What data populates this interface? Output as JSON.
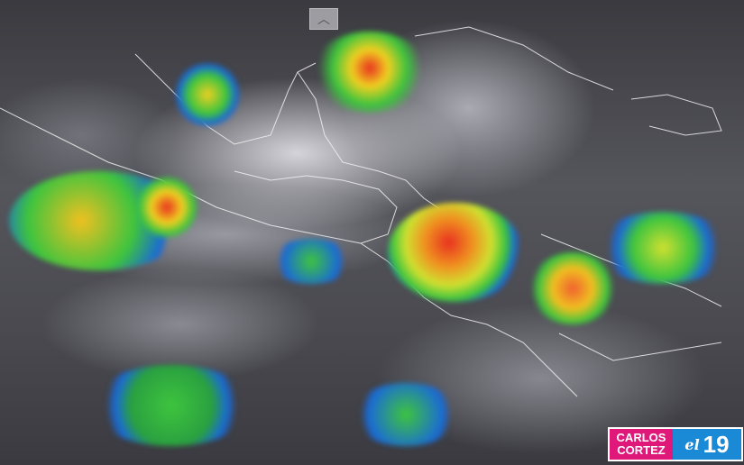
{
  "controls": {
    "scroll_up_icon": "chevron-up-icon",
    "scroll_up_glyph": "︿"
  },
  "logo": {
    "name_line1": "CARLOS",
    "name_line2": "CORTEZ",
    "brand_prefix": "el",
    "brand_number": "19",
    "colors": {
      "name_bg": "#e0187a",
      "brand_bg": "#1a8ad6"
    }
  },
  "map": {
    "type": "infrared satellite precipitation",
    "colors": {
      "low": "#1a6ad6",
      "moderate": "#3ec43e",
      "heavy": "#f0e020",
      "intense": "#e83020"
    }
  }
}
